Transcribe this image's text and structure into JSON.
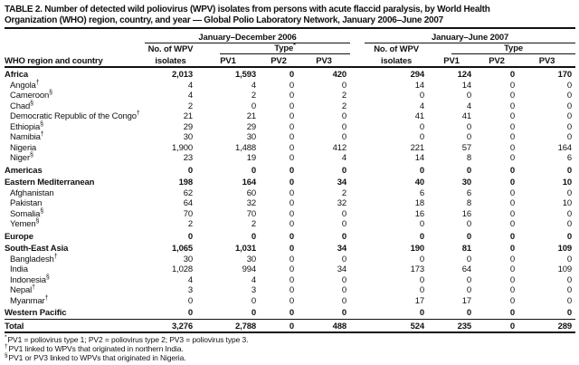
{
  "title": {
    "line1": "TABLE 2. Number of detected wild poliovirus (WPV) isolates from persons with acute flaccid paralysis, by World Health",
    "line2": "Organization (WHO) region, country, and year — Global Polio Laboratory Network, January 2006–June 2007"
  },
  "header": {
    "row_header": "WHO region and country",
    "groups": [
      {
        "period": "January–December 2006",
        "isolates_line1": "No. of WPV",
        "isolates_line2": "isolates",
        "type_label": "Type",
        "type_marker": "*",
        "subcols": [
          "PV1",
          "PV2",
          "PV3"
        ]
      },
      {
        "period": "January–June 2007",
        "isolates_line1": "No. of WPV",
        "isolates_line2": "isolates",
        "type_label": "Type",
        "type_marker": "",
        "subcols": [
          "PV1",
          "PV2",
          "PV3"
        ]
      }
    ]
  },
  "rows": [
    {
      "label": "Africa",
      "marker": "",
      "bold": true,
      "indent": false,
      "values": [
        "2,013",
        "1,593",
        "0",
        "420",
        "294",
        "124",
        "0",
        "170"
      ]
    },
    {
      "label": "Angola",
      "marker": "†",
      "bold": false,
      "indent": true,
      "values": [
        "4",
        "4",
        "0",
        "0",
        "14",
        "14",
        "0",
        "0"
      ]
    },
    {
      "label": "Cameroon",
      "marker": "§",
      "bold": false,
      "indent": true,
      "values": [
        "4",
        "2",
        "0",
        "2",
        "0",
        "0",
        "0",
        "0"
      ]
    },
    {
      "label": "Chad",
      "marker": "§",
      "bold": false,
      "indent": true,
      "values": [
        "2",
        "0",
        "0",
        "2",
        "4",
        "4",
        "0",
        "0"
      ]
    },
    {
      "label": "Democratic Republic of the Congo",
      "marker": "†",
      "bold": false,
      "indent": true,
      "values": [
        "21",
        "21",
        "0",
        "0",
        "41",
        "41",
        "0",
        "0"
      ]
    },
    {
      "label": "Ethiopia",
      "marker": "§",
      "bold": false,
      "indent": true,
      "values": [
        "29",
        "29",
        "0",
        "0",
        "0",
        "0",
        "0",
        "0"
      ]
    },
    {
      "label": "Namibia",
      "marker": "†",
      "bold": false,
      "indent": true,
      "values": [
        "30",
        "30",
        "0",
        "0",
        "0",
        "0",
        "0",
        "0"
      ]
    },
    {
      "label": "Nigeria",
      "marker": "",
      "bold": false,
      "indent": true,
      "values": [
        "1,900",
        "1,488",
        "0",
        "412",
        "221",
        "57",
        "0",
        "164"
      ]
    },
    {
      "label": "Niger",
      "marker": "§",
      "bold": false,
      "indent": true,
      "values": [
        "23",
        "19",
        "0",
        "4",
        "14",
        "8",
        "0",
        "6"
      ]
    },
    {
      "label": "Americas",
      "marker": "",
      "bold": true,
      "indent": false,
      "values": [
        "0",
        "0",
        "0",
        "0",
        "0",
        "0",
        "0",
        "0"
      ]
    },
    {
      "label": "Eastern Mediterranean",
      "marker": "",
      "bold": true,
      "indent": false,
      "values": [
        "198",
        "164",
        "0",
        "34",
        "40",
        "30",
        "0",
        "10"
      ]
    },
    {
      "label": "Afghanistan",
      "marker": "",
      "bold": false,
      "indent": true,
      "values": [
        "62",
        "60",
        "0",
        "2",
        "6",
        "6",
        "0",
        "0"
      ]
    },
    {
      "label": "Pakistan",
      "marker": "",
      "bold": false,
      "indent": true,
      "values": [
        "64",
        "32",
        "0",
        "32",
        "18",
        "8",
        "0",
        "10"
      ]
    },
    {
      "label": "Somalia",
      "marker": "§",
      "bold": false,
      "indent": true,
      "values": [
        "70",
        "70",
        "0",
        "0",
        "16",
        "16",
        "0",
        "0"
      ]
    },
    {
      "label": "Yemen",
      "marker": "§",
      "bold": false,
      "indent": true,
      "values": [
        "2",
        "2",
        "0",
        "0",
        "0",
        "0",
        "0",
        "0"
      ]
    },
    {
      "label": "Europe",
      "marker": "",
      "bold": true,
      "indent": false,
      "values": [
        "0",
        "0",
        "0",
        "0",
        "0",
        "0",
        "0",
        "0"
      ]
    },
    {
      "label": "South-East Asia",
      "marker": "",
      "bold": true,
      "indent": false,
      "values": [
        "1,065",
        "1,031",
        "0",
        "34",
        "190",
        "81",
        "0",
        "109"
      ]
    },
    {
      "label": "Bangladesh",
      "marker": "†",
      "bold": false,
      "indent": true,
      "values": [
        "30",
        "30",
        "0",
        "0",
        "0",
        "0",
        "0",
        "0"
      ]
    },
    {
      "label": "India",
      "marker": "",
      "bold": false,
      "indent": true,
      "values": [
        "1,028",
        "994",
        "0",
        "34",
        "173",
        "64",
        "0",
        "109"
      ]
    },
    {
      "label": "Indonesia",
      "marker": "§",
      "bold": false,
      "indent": true,
      "values": [
        "4",
        "4",
        "0",
        "0",
        "0",
        "0",
        "0",
        "0"
      ]
    },
    {
      "label": "Nepal",
      "marker": "†",
      "bold": false,
      "indent": true,
      "values": [
        "3",
        "3",
        "0",
        "0",
        "0",
        "0",
        "0",
        "0"
      ]
    },
    {
      "label": "Myanmar",
      "marker": "†",
      "bold": false,
      "indent": true,
      "values": [
        "0",
        "0",
        "0",
        "0",
        "17",
        "17",
        "0",
        "0"
      ]
    },
    {
      "label": "Western Pacific",
      "marker": "",
      "bold": true,
      "indent": false,
      "values": [
        "0",
        "0",
        "0",
        "0",
        "0",
        "0",
        "0",
        "0"
      ]
    }
  ],
  "total_row": {
    "label": "Total",
    "values": [
      "3,276",
      "2,788",
      "0",
      "488",
      "524",
      "235",
      "0",
      "289"
    ]
  },
  "footnotes": [
    {
      "marker": "*",
      "text": "PV1 = poliovirus type 1; PV2 = poliovirus type 2; PV3 = poliovirus type 3."
    },
    {
      "marker": "†",
      "text": "PV1 linked to WPVs that originated in northern India."
    },
    {
      "marker": "§",
      "text": "PV1 or PV3 linked to WPVs that originated in Nigeria."
    }
  ]
}
